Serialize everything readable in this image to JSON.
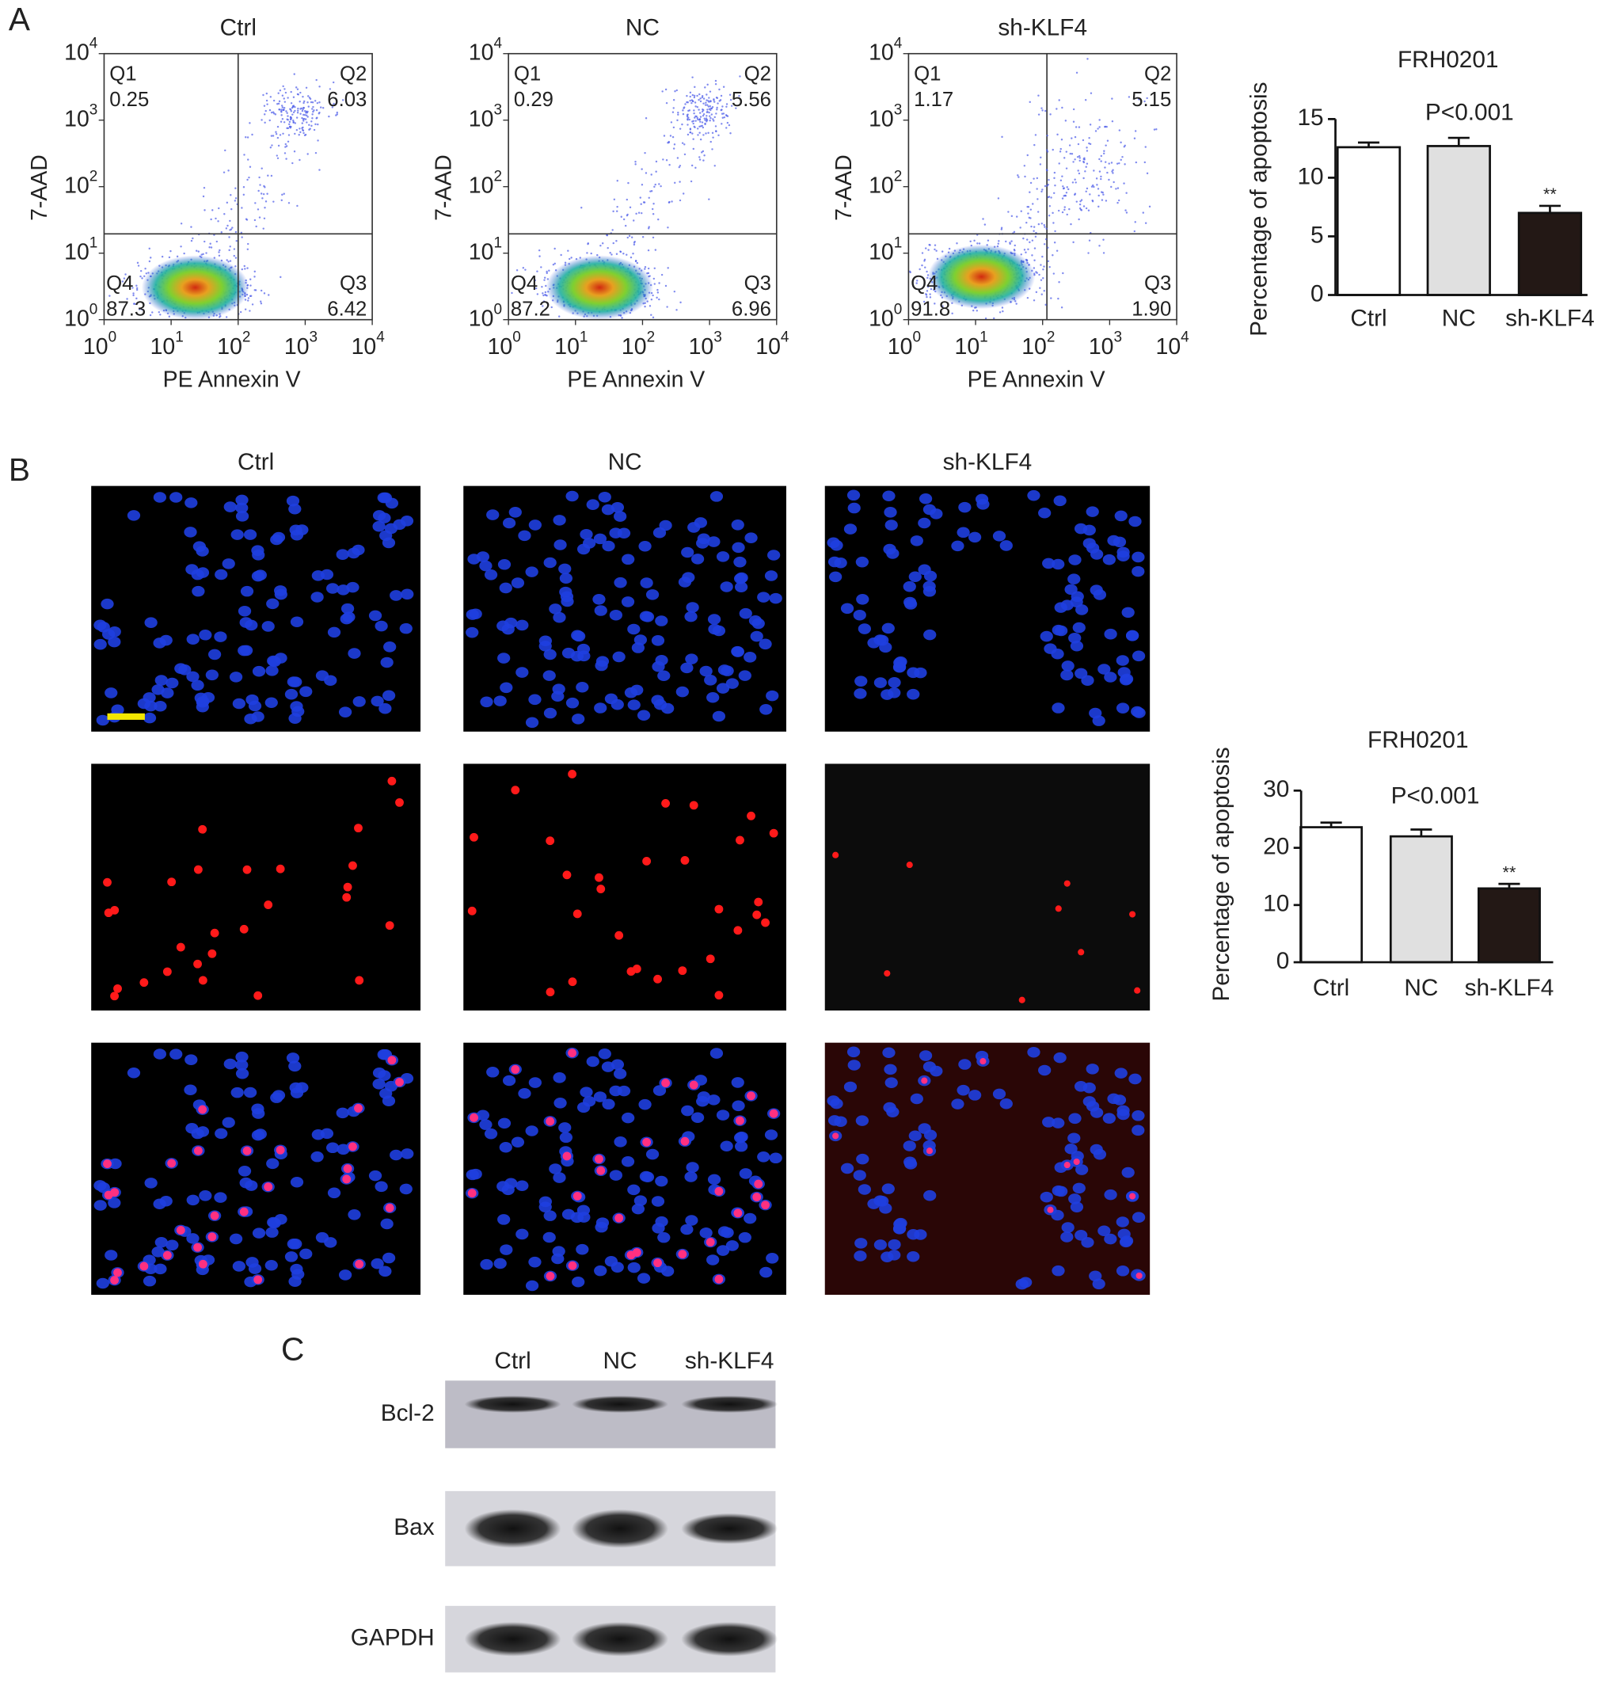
{
  "panel_labels": [
    "A",
    "B",
    "C"
  ],
  "flow_plots": {
    "xlabel": "PE Annexin V",
    "ylabel": "7-AAD",
    "tick_base": "10",
    "tick_exponents": [
      0,
      1,
      2,
      3,
      4
    ],
    "plots": [
      {
        "title": "Ctrl",
        "quadrants": [
          {
            "name": "Q1",
            "value": "0.25"
          },
          {
            "name": "Q2",
            "value": "6.03"
          },
          {
            "name": "Q3",
            "value": "6.42"
          },
          {
            "name": "Q4",
            "value": "87.3"
          }
        ]
      },
      {
        "title": "NC",
        "quadrants": [
          {
            "name": "Q1",
            "value": "0.29"
          },
          {
            "name": "Q2",
            "value": "5.56"
          },
          {
            "name": "Q3",
            "value": "6.96"
          },
          {
            "name": "Q4",
            "value": "87.2"
          }
        ]
      },
      {
        "title": "sh-KLF4",
        "quadrants": [
          {
            "name": "Q1",
            "value": "1.17"
          },
          {
            "name": "Q2",
            "value": "5.15"
          },
          {
            "name": "Q3",
            "value": "1.90"
          },
          {
            "name": "Q4",
            "value": "91.8"
          }
        ]
      }
    ]
  },
  "chart_data": [
    {
      "type": "bar",
      "title": "FRH0201",
      "ylabel": "Percentage of apoptosis",
      "categories": [
        "Ctrl",
        "NC",
        "sh-KLF4"
      ],
      "values": [
        12.6,
        12.7,
        7.0
      ],
      "errors": [
        0.4,
        0.7,
        0.6
      ],
      "colors": [
        "#ffffff",
        "#e0e0e0",
        "#231815"
      ],
      "significance_labels": [
        null,
        null,
        "**"
      ],
      "annotation": "P<0.001",
      "ylim": [
        0,
        15
      ],
      "yticks": [
        0,
        5,
        10,
        15
      ]
    },
    {
      "type": "bar",
      "title": "FRH0201",
      "ylabel": "Percentage of apoptosis",
      "categories": [
        "Ctrl",
        "NC",
        "sh-KLF4"
      ],
      "values": [
        23.6,
        22.0,
        12.9
      ],
      "errors": [
        0.8,
        1.2,
        0.8
      ],
      "colors": [
        "#ffffff",
        "#e0e0e0",
        "#231815"
      ],
      "significance_labels": [
        null,
        null,
        "**"
      ],
      "annotation": "P<0.001",
      "ylim": [
        0,
        30
      ],
      "yticks": [
        0,
        10,
        20,
        30
      ]
    }
  ],
  "microscopy": {
    "columns": [
      "Ctrl",
      "NC",
      "sh-KLF4"
    ]
  },
  "western_blot": {
    "lanes": [
      "Ctrl",
      "NC",
      "sh-KLF4"
    ],
    "proteins": [
      "Bcl-2",
      "Bax",
      "GAPDH"
    ]
  }
}
